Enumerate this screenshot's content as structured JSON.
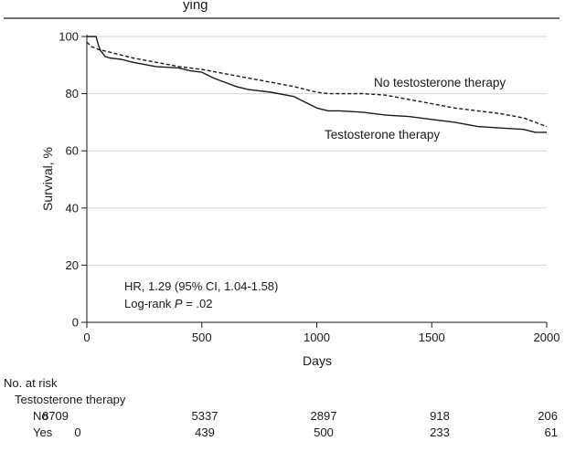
{
  "chart_data": {
    "type": "line",
    "title": "",
    "partial_title_text": "ying",
    "xlabel": "Days",
    "ylabel": "Survival, %",
    "xlim": [
      0,
      2000
    ],
    "ylim": [
      0,
      100
    ],
    "x_ticks": [
      0,
      500,
      1000,
      1500,
      2000
    ],
    "y_ticks": [
      0,
      20,
      40,
      60,
      80,
      100
    ],
    "grid": "horizontal",
    "series": [
      {
        "name": "No testosterone therapy",
        "style": "dashed",
        "color": "#1a1a1a",
        "x": [
          0,
          20,
          50,
          100,
          150,
          200,
          300,
          400,
          500,
          600,
          700,
          800,
          900,
          1000,
          1050,
          1100,
          1200,
          1300,
          1400,
          1500,
          1600,
          1700,
          1800,
          1900,
          2000
        ],
        "y": [
          98,
          96.5,
          95.5,
          94.5,
          93.5,
          92.5,
          91,
          89.5,
          88.5,
          87,
          85.5,
          84,
          82.5,
          80.5,
          80,
          80,
          80,
          79.5,
          78,
          76.5,
          75,
          74,
          73,
          71.5,
          68.5
        ]
      },
      {
        "name": "Testosterone therapy",
        "style": "solid",
        "color": "#1a1a1a",
        "x": [
          0,
          40,
          50,
          60,
          80,
          100,
          150,
          200,
          300,
          400,
          450,
          500,
          550,
          600,
          650,
          700,
          800,
          900,
          950,
          1000,
          1050,
          1100,
          1200,
          1300,
          1400,
          1500,
          1600,
          1700,
          1800,
          1900,
          1950,
          2000
        ],
        "y": [
          100,
          100,
          97,
          95,
          93,
          92.5,
          92,
          91,
          89.5,
          89,
          88,
          87.5,
          85.5,
          84,
          82.5,
          81.5,
          80.5,
          79,
          77,
          75,
          74,
          74,
          73.5,
          72.5,
          72,
          71,
          70,
          68.5,
          68,
          67.5,
          66.5,
          66.5
        ]
      }
    ],
    "curve_labels": [
      {
        "series": "No testosterone therapy",
        "text": "No testosterone therapy"
      },
      {
        "series": "Testosterone therapy",
        "text": "Testosterone therapy"
      }
    ],
    "annotations": {
      "hr_text": "HR, 1.29 (95% CI, 1.04-1.58)",
      "logrank_prefix": "Log-rank ",
      "logrank_p": "P",
      "logrank_value": " = .02"
    }
  },
  "risk_table": {
    "title": "No. at risk",
    "subtitle": "Testosterone therapy",
    "rows": [
      {
        "label": "No",
        "values": [
          "8709",
          "5337",
          "2897",
          "918",
          "206"
        ]
      },
      {
        "label": "Yes",
        "values": [
          "0",
          "439",
          "500",
          "233",
          "61"
        ]
      }
    ]
  }
}
